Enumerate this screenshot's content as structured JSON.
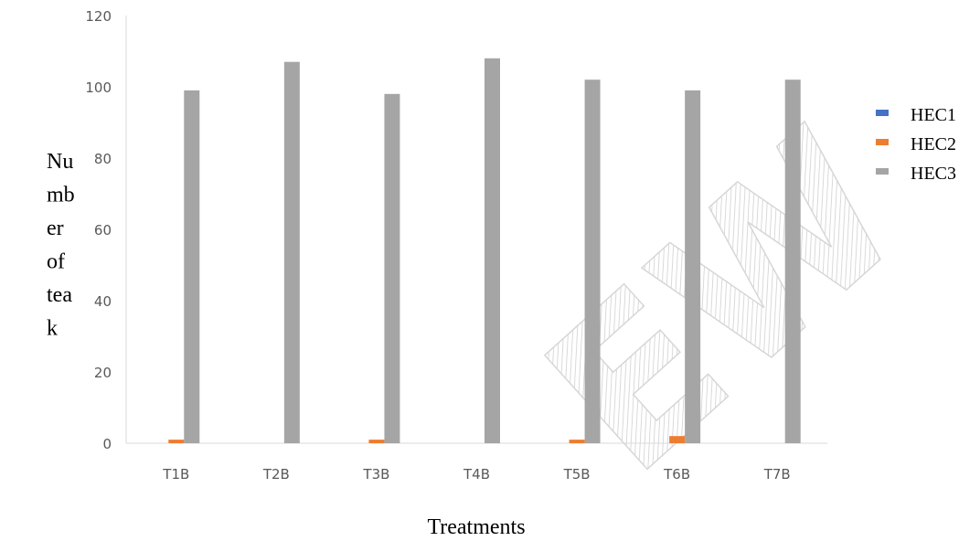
{
  "chart_data": {
    "type": "bar",
    "categories": [
      "T1B",
      "T2B",
      "T3B",
      "T4B",
      "T5B",
      "T6B",
      "T7B"
    ],
    "series": [
      {
        "name": "HEC1",
        "color": "#4472C4",
        "values": [
          0,
          0,
          0,
          0,
          0,
          0,
          0
        ]
      },
      {
        "name": "HEC2",
        "color": "#ED7D31",
        "values": [
          1,
          0,
          1,
          0,
          1,
          2,
          0
        ]
      },
      {
        "name": "HEC3",
        "color": "#A5A5A5",
        "values": [
          99,
          107,
          98,
          108,
          102,
          99,
          102
        ]
      }
    ],
    "ylim": [
      0,
      120
    ],
    "yticks": [
      "0",
      "20",
      "40",
      "60",
      "80",
      "100",
      "120"
    ],
    "xlabel": "Treatments",
    "ylabel_lines": [
      "Nu",
      "mb",
      "er",
      "of",
      "tea",
      "k"
    ],
    "legend_position": "right",
    "grid": false
  },
  "watermark": "REVIEW"
}
